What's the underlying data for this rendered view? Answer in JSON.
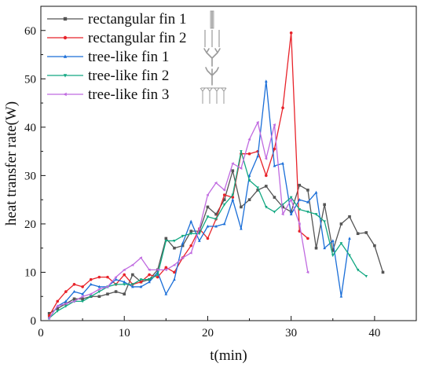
{
  "chart_data": {
    "type": "line",
    "title": "",
    "xlabel": "t(min)",
    "ylabel": "heat transfer rate(W)",
    "xlim": [
      0,
      45
    ],
    "ylim": [
      0,
      65
    ],
    "xticks": [
      0,
      10,
      20,
      30,
      40
    ],
    "yticks": [
      0,
      10,
      20,
      30,
      40,
      50,
      60
    ],
    "grid": false,
    "legend_position": "top-left",
    "series": [
      {
        "name": "rectangular fin 1",
        "color": "#555555",
        "marker": "square",
        "icon": "single-plate-fin-icon",
        "x": [
          1,
          2,
          3,
          4,
          5,
          6,
          7,
          8,
          9,
          10,
          11,
          12,
          13,
          14,
          15,
          16,
          17,
          18,
          19,
          20,
          21,
          22,
          23,
          24,
          25,
          26,
          27,
          28,
          29,
          30,
          31,
          32,
          33,
          34,
          35,
          36,
          37,
          38,
          39,
          40,
          41
        ],
        "y": [
          1.5,
          2.5,
          3.5,
          4.5,
          4.5,
          5,
          5,
          5.5,
          6,
          5.5,
          9.5,
          8,
          8.5,
          10.5,
          17,
          15,
          15.5,
          18.5,
          18.5,
          23.5,
          22,
          25,
          31,
          23.5,
          25,
          27,
          27.8,
          25.5,
          23.5,
          22.5,
          28,
          27,
          15,
          24,
          14.5,
          20,
          21.5,
          18,
          18.2,
          15.5,
          10
        ]
      },
      {
        "name": "rectangular fin 2",
        "color": "#e8232a",
        "marker": "circle",
        "icon": "triple-plate-fin-icon",
        "x": [
          1,
          2,
          3,
          4,
          5,
          6,
          7,
          8,
          9,
          10,
          11,
          12,
          13,
          14,
          15,
          16,
          17,
          18,
          19,
          20,
          21,
          22,
          23,
          24,
          25,
          26,
          27,
          28,
          29,
          30,
          31,
          32
        ],
        "y": [
          1,
          4,
          6,
          7.5,
          7,
          8.5,
          9,
          9,
          7.5,
          9.5,
          7.5,
          8,
          9.5,
          9,
          11,
          10,
          13,
          15.5,
          19,
          17,
          21,
          26,
          25.5,
          34.5,
          34.5,
          35,
          30,
          35.5,
          44,
          59.5,
          18.5,
          17
        ]
      },
      {
        "name": "tree-like fin 1",
        "color": "#1a6ed8",
        "marker": "triangle-up",
        "icon": "tree-fin-1-icon",
        "x": [
          1,
          2,
          3,
          4,
          5,
          6,
          7,
          8,
          9,
          10,
          11,
          12,
          13,
          14,
          15,
          16,
          17,
          18,
          19,
          20,
          21,
          22,
          23,
          24,
          25,
          26,
          27,
          28,
          29,
          30,
          31,
          32,
          33,
          34,
          35,
          36,
          37
        ],
        "y": [
          0.5,
          3,
          4,
          6,
          5.5,
          7.5,
          7,
          7,
          8.5,
          8,
          7,
          7,
          8,
          10,
          5.5,
          8.5,
          16,
          20.5,
          16.5,
          19.5,
          19.5,
          20,
          25,
          19,
          30,
          34,
          49.5,
          32,
          32.5,
          22,
          25,
          24.5,
          26.5,
          15,
          16.5,
          5,
          17
        ]
      },
      {
        "name": "tree-like fin 2",
        "color": "#13a882",
        "marker": "triangle-down",
        "icon": "tree-fin-2-icon",
        "x": [
          1,
          2,
          3,
          4,
          5,
          6,
          7,
          8,
          9,
          10,
          11,
          12,
          13,
          14,
          15,
          16,
          17,
          18,
          19,
          20,
          21,
          22,
          23,
          24,
          25,
          26,
          27,
          28,
          29,
          30,
          31,
          32,
          33,
          34,
          35,
          36,
          37,
          38,
          39
        ],
        "y": [
          0.5,
          2,
          3,
          4,
          4,
          5,
          6,
          7,
          7.5,
          7.5,
          7.5,
          8.5,
          8.5,
          9.5,
          16.5,
          16.5,
          17.5,
          18,
          18,
          21.5,
          21,
          24,
          26,
          35,
          29,
          27.5,
          23.5,
          22.5,
          24,
          25.5,
          23,
          22.5,
          22,
          20.5,
          13.5,
          16,
          13.5,
          10.5,
          9.2
        ]
      },
      {
        "name": "tree-like fin 3",
        "color": "#c06be0",
        "marker": "triangle-left",
        "icon": "tree-fin-3-icon",
        "x": [
          1,
          2,
          3,
          4,
          5,
          6,
          7,
          8,
          9,
          10,
          11,
          12,
          13,
          14,
          15,
          16,
          17,
          18,
          19,
          20,
          21,
          22,
          23,
          24,
          25,
          26,
          27,
          28,
          29,
          30,
          31,
          32
        ],
        "y": [
          0.5,
          3,
          3.5,
          4,
          5,
          5.5,
          6.5,
          7,
          9,
          10.5,
          11.5,
          13,
          10.5,
          10.5,
          10.5,
          11.5,
          13,
          14,
          19,
          26,
          28.5,
          27,
          32.5,
          31.5,
          37.5,
          41,
          33.5,
          40.5,
          22,
          25,
          20,
          10
        ]
      }
    ]
  }
}
